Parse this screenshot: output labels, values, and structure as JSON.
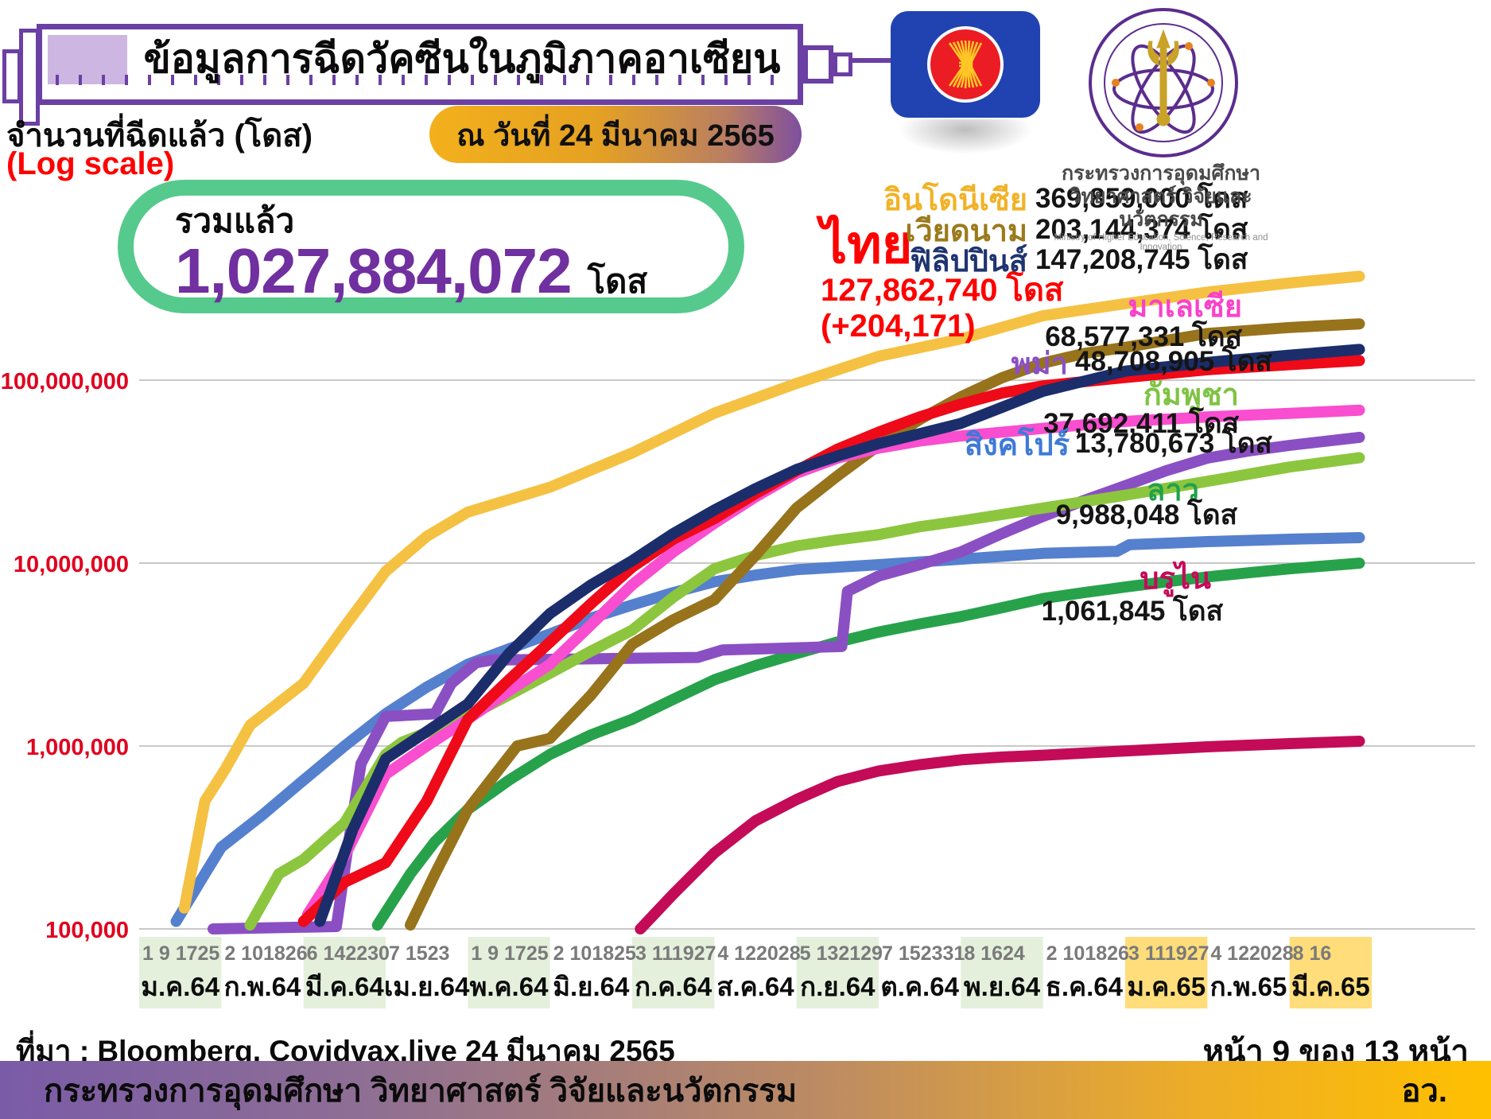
{
  "header": {
    "title": "ข้อมูลการฉีดวัคซีนในภูมิภาคอาเซียน",
    "date_badge": "ณ วันที่ 24 มีนาคม 2565",
    "axis_title_line1": "จำนวนที่ฉีดแล้ว (โดส)",
    "axis_title_line2": "(Log scale)"
  },
  "total_badge": {
    "label": "รวมแล้ว",
    "value": "1,027,884,072",
    "unit": "โดส"
  },
  "thailand_callout": {
    "name": "ไทย",
    "value": "127,862,740 โดส",
    "delta": "(+204,171)"
  },
  "ministry": {
    "line1": "กระทรวงการอุดมศึกษา",
    "line2": "วิทยาศาสตร์ วิจัยและนวัตกรรม",
    "line3": "Ministry of Higher Education, Science, Research and Innovation"
  },
  "source_line": "ที่มา : Bloomberg, Covidvax.live 24 มีนาคม 2565",
  "page_indicator": "หน้า 9 ของ 13 หน้า",
  "footer": {
    "text": "กระทรวงการอุดมศึกษา วิทยาศาสตร์ วิจัยและนวัตกรรม",
    "abbr": "อว."
  },
  "icons": {
    "asean_flag": "asean-flag",
    "ministry_seal": "ministry-of-higher-education-seal",
    "syringe_banner": "syringe-banner"
  },
  "colors": {
    "banner_purple": "#6B3FA3",
    "banner_fill": "#CDB6E2",
    "badge_green": "#55CA8C",
    "total_purple": "#7030A0",
    "axis_red": "#E1001E",
    "thai_red": "#FF0000",
    "asean_blue": "#2143B1",
    "asean_red": "#EC1C24",
    "asean_yellow": "#FFC726"
  },
  "chart_data": {
    "type": "line",
    "y_scale": "log",
    "ylabel": "จำนวนที่ฉีดแล้ว (โดส)",
    "grid": true,
    "ylim": [
      100000,
      500000000
    ],
    "y_ticks": [
      {
        "value": 100000000,
        "label": "100,000,000"
      },
      {
        "value": 10000000,
        "label": "10,000,000"
      },
      {
        "value": 1000000,
        "label": "1,000,000"
      },
      {
        "value": 100000,
        "label": "100,000"
      }
    ],
    "x_months": [
      {
        "days": "1  9 1725",
        "month": "ม.ค.64",
        "bg": "green"
      },
      {
        "days": "2 101826",
        "month": "ก.พ.64",
        "bg": "white"
      },
      {
        "days": "6 142230",
        "month": "มี.ค.64",
        "bg": "green"
      },
      {
        "days": "7 1523",
        "month": "เม.ย.64",
        "bg": "white"
      },
      {
        "days": "1  9 1725",
        "month": "พ.ค.64",
        "bg": "green"
      },
      {
        "days": "2 101825",
        "month": "มิ.ย.64",
        "bg": "white"
      },
      {
        "days": "3 111927",
        "month": "ก.ค.64",
        "bg": "green"
      },
      {
        "days": "4 122028",
        "month": "ส.ค.64",
        "bg": "white"
      },
      {
        "days": "5 132129",
        "month": "ก.ย.64",
        "bg": "green"
      },
      {
        "days": "7 152331",
        "month": "ต.ค.64",
        "bg": "white"
      },
      {
        "days": "8 1624",
        "month": "พ.ย.64",
        "bg": "green"
      },
      {
        "days": "2 101826",
        "month": "ธ.ค.64",
        "bg": "white"
      },
      {
        "days": "3 111927",
        "month": "ม.ค.65",
        "bg": "yellow"
      },
      {
        "days": "4 122028",
        "month": "ก.พ.65",
        "bg": "white"
      },
      {
        "days": "8 16",
        "month": "มี.ค.65",
        "bg": "yellow"
      }
    ],
    "draw_order": [
      "brunei",
      "laos",
      "singapore",
      "myanmar",
      "cambodia",
      "vietnam",
      "malaysia",
      "thailand",
      "philippines",
      "indonesia"
    ],
    "series": [
      {
        "key": "indonesia",
        "label_th": "อินโดนีเซีย",
        "value_label": "369,859,000 โดส",
        "doses": 369859000,
        "color": "#F5C142",
        "label_color": "#F2B226",
        "points": [
          [
            0.55,
            130000
          ],
          [
            0.8,
            500000
          ],
          [
            1.05,
            750000
          ],
          [
            1.35,
            1300000
          ],
          [
            2,
            2200000
          ],
          [
            2.5,
            4500000
          ],
          [
            3,
            9000000
          ],
          [
            3.5,
            14000000
          ],
          [
            4,
            19000000
          ],
          [
            5,
            26000000
          ],
          [
            6,
            40000000
          ],
          [
            7,
            66000000
          ],
          [
            8,
            96000000
          ],
          [
            9,
            135000000
          ],
          [
            10,
            168000000
          ],
          [
            11,
            225000000
          ],
          [
            12,
            262000000
          ],
          [
            13,
            303000000
          ],
          [
            14,
            340000000
          ],
          [
            14.85,
            369859000
          ]
        ]
      },
      {
        "key": "vietnam",
        "label_th": "เวียดนาม",
        "value_label": "203,144,374 โดส",
        "doses": 203144374,
        "color": "#97731C",
        "label_color": "#9A7A1C",
        "points": [
          [
            3.3,
            105000
          ],
          [
            3.6,
            200000
          ],
          [
            4,
            450000
          ],
          [
            4.6,
            1000000
          ],
          [
            5,
            1100000
          ],
          [
            5.5,
            1900000
          ],
          [
            6,
            3600000
          ],
          [
            6.5,
            4900000
          ],
          [
            7,
            6300000
          ],
          [
            7.5,
            11000000
          ],
          [
            8,
            20000000
          ],
          [
            8.5,
            30000000
          ],
          [
            9,
            44000000
          ],
          [
            9.5,
            61000000
          ],
          [
            10,
            81000000
          ],
          [
            10.5,
            103000000
          ],
          [
            11,
            124000000
          ],
          [
            11.5,
            140000000
          ],
          [
            12,
            151000000
          ],
          [
            13,
            180000000
          ],
          [
            14,
            194000000
          ],
          [
            14.85,
            203144374
          ]
        ]
      },
      {
        "key": "philippines",
        "label_th": "ฟิลิปปินส์",
        "value_label": "147,208,745 โดส",
        "doses": 147208745,
        "color": "#1B2E6B",
        "label_color": "#1F3470",
        "points": [
          [
            2.2,
            110000
          ],
          [
            2.6,
            350000
          ],
          [
            3,
            850000
          ],
          [
            3.5,
            1200000
          ],
          [
            4,
            1700000
          ],
          [
            4.5,
            3200000
          ],
          [
            5,
            5300000
          ],
          [
            5.5,
            7600000
          ],
          [
            6,
            10300000
          ],
          [
            6.5,
            14500000
          ],
          [
            7,
            19500000
          ],
          [
            7.5,
            25500000
          ],
          [
            8,
            32500000
          ],
          [
            8.5,
            38500000
          ],
          [
            9,
            45000000
          ],
          [
            9.5,
            51000000
          ],
          [
            10,
            58000000
          ],
          [
            10.5,
            71000000
          ],
          [
            11,
            87000000
          ],
          [
            12,
            112000000
          ],
          [
            13,
            125000000
          ],
          [
            14,
            137000000
          ],
          [
            14.85,
            147208745
          ]
        ]
      },
      {
        "key": "thailand",
        "label_th": "ไทย",
        "value_label": "127,862,740 โดส",
        "doses": 127862740,
        "color": "#EE0A18",
        "label_color": "#FF0000",
        "points": [
          [
            2.0,
            110000
          ],
          [
            2.5,
            180000
          ],
          [
            3,
            230000
          ],
          [
            3.5,
            500000
          ],
          [
            4,
            1400000
          ],
          [
            4.5,
            2300000
          ],
          [
            5,
            3700000
          ],
          [
            5.5,
            6000000
          ],
          [
            6,
            9500000
          ],
          [
            6.5,
            13500000
          ],
          [
            7,
            17500000
          ],
          [
            7.5,
            24000000
          ],
          [
            8,
            32000000
          ],
          [
            8.5,
            42000000
          ],
          [
            9,
            52000000
          ],
          [
            9.5,
            63000000
          ],
          [
            10,
            74000000
          ],
          [
            10.5,
            85000000
          ],
          [
            11,
            93000000
          ],
          [
            12,
            103500000
          ],
          [
            13,
            114000000
          ],
          [
            14,
            121500000
          ],
          [
            14.85,
            127862740
          ]
        ]
      },
      {
        "key": "malaysia",
        "label_th": "มาเลเซีย",
        "value_label": "68,577,331 โดส",
        "doses": 68577331,
        "color": "#F84ECF",
        "label_color": "#FA41C9",
        "points": [
          [
            2.05,
            120000
          ],
          [
            2.5,
            250000
          ],
          [
            3,
            700000
          ],
          [
            3.5,
            1000000
          ],
          [
            4,
            1400000
          ],
          [
            4.5,
            2000000
          ],
          [
            5,
            2800000
          ],
          [
            5.5,
            4600000
          ],
          [
            6,
            7600000
          ],
          [
            6.5,
            11500000
          ],
          [
            7,
            16500000
          ],
          [
            7.5,
            23000000
          ],
          [
            8,
            31000000
          ],
          [
            8.5,
            37500000
          ],
          [
            9,
            42500000
          ],
          [
            9.5,
            46500000
          ],
          [
            10,
            49500000
          ],
          [
            11,
            54500000
          ],
          [
            12,
            59500000
          ],
          [
            13,
            63000000
          ],
          [
            14,
            65800000
          ],
          [
            14.85,
            68577331
          ]
        ]
      },
      {
        "key": "myanmar",
        "label_th": "พม่า",
        "value_label": "48,708,905 โดส",
        "doses": 48708905,
        "color": "#8B4FC4",
        "label_color": "#8B4FC4",
        "points": [
          [
            0.9,
            100000
          ],
          [
            2.4,
            103000
          ],
          [
            2.55,
            300000
          ],
          [
            2.7,
            800000
          ],
          [
            3,
            1450000
          ],
          [
            3.6,
            1500000
          ],
          [
            3.8,
            2200000
          ],
          [
            4.1,
            2850000
          ],
          [
            4.3,
            2950000
          ],
          [
            6.8,
            3050000
          ],
          [
            7.1,
            3350000
          ],
          [
            8.55,
            3500000
          ],
          [
            8.62,
            7000000
          ],
          [
            9,
            8500000
          ],
          [
            9.5,
            9800000
          ],
          [
            10,
            11500000
          ],
          [
            10.5,
            14500000
          ],
          [
            11,
            18000000
          ],
          [
            11.5,
            22000000
          ],
          [
            12,
            26500000
          ],
          [
            12.5,
            32000000
          ],
          [
            13,
            37500000
          ],
          [
            13.5,
            41000000
          ],
          [
            14,
            44000000
          ],
          [
            14.85,
            48708905
          ]
        ]
      },
      {
        "key": "cambodia",
        "label_th": "กัมพูชา",
        "value_label": "37,692,411 โดส",
        "doses": 37692411,
        "color": "#8CC63E",
        "label_color": "#7FC343",
        "points": [
          [
            1.35,
            105000
          ],
          [
            1.7,
            200000
          ],
          [
            2,
            240000
          ],
          [
            2.5,
            380000
          ],
          [
            3,
            900000
          ],
          [
            3.2,
            1050000
          ],
          [
            4,
            1450000
          ],
          [
            4.5,
            1900000
          ],
          [
            5,
            2500000
          ],
          [
            5.5,
            3300000
          ],
          [
            6,
            4300000
          ],
          [
            6.5,
            6500000
          ],
          [
            7,
            9300000
          ],
          [
            7.5,
            11000000
          ],
          [
            8,
            12400000
          ],
          [
            8.5,
            13400000
          ],
          [
            9,
            14300000
          ],
          [
            9.5,
            15800000
          ],
          [
            10,
            17000000
          ],
          [
            11,
            20000000
          ],
          [
            12,
            23500000
          ],
          [
            13,
            28000000
          ],
          [
            14,
            33500000
          ],
          [
            14.85,
            37692411
          ]
        ]
      },
      {
        "key": "singapore",
        "label_th": "สิงคโปร์",
        "value_label": "13,780,673 โดส",
        "doses": 13780673,
        "color": "#5580CE",
        "label_color": "#3E7AD6",
        "points": [
          [
            0.45,
            110000
          ],
          [
            0.8,
            200000
          ],
          [
            1,
            280000
          ],
          [
            1.5,
            420000
          ],
          [
            2,
            650000
          ],
          [
            2.5,
            1000000
          ],
          [
            3,
            1500000
          ],
          [
            3.5,
            2100000
          ],
          [
            4,
            2800000
          ],
          [
            4.5,
            3400000
          ],
          [
            5,
            4100000
          ],
          [
            5.5,
            5000000
          ],
          [
            6,
            5900000
          ],
          [
            6.5,
            6900000
          ],
          [
            7,
            7900000
          ],
          [
            7.5,
            8600000
          ],
          [
            8,
            9200000
          ],
          [
            9,
            9800000
          ],
          [
            10,
            10500000
          ],
          [
            11,
            11300000
          ],
          [
            11.9,
            11600000
          ],
          [
            12.05,
            12600000
          ],
          [
            13,
            13100000
          ],
          [
            14,
            13500000
          ],
          [
            14.85,
            13780673
          ]
        ]
      },
      {
        "key": "laos",
        "label_th": "ลาว",
        "value_label": "9,988,048 โดส",
        "doses": 9988048,
        "color": "#27A24B",
        "label_color": "#22A14B",
        "points": [
          [
            2.9,
            105000
          ],
          [
            3.3,
            200000
          ],
          [
            3.6,
            300000
          ],
          [
            4,
            450000
          ],
          [
            4.5,
            650000
          ],
          [
            5,
            900000
          ],
          [
            5.5,
            1150000
          ],
          [
            6,
            1400000
          ],
          [
            6.5,
            1800000
          ],
          [
            7,
            2300000
          ],
          [
            7.5,
            2750000
          ],
          [
            8,
            3200000
          ],
          [
            8.5,
            3700000
          ],
          [
            9,
            4200000
          ],
          [
            9.5,
            4650000
          ],
          [
            10,
            5100000
          ],
          [
            10.5,
            5700000
          ],
          [
            11,
            6400000
          ],
          [
            11.5,
            6900000
          ],
          [
            12,
            7400000
          ],
          [
            12.5,
            7900000
          ],
          [
            13,
            8400000
          ],
          [
            13.5,
            8850000
          ],
          [
            14,
            9300000
          ],
          [
            14.85,
            9988048
          ]
        ]
      },
      {
        "key": "brunei",
        "label_th": "บรูไน",
        "value_label": "1,061,845 โดส",
        "doses": 1061845,
        "color": "#C30B58",
        "label_color": "#C40A58",
        "points": [
          [
            6.1,
            100000
          ],
          [
            6.5,
            155000
          ],
          [
            7,
            260000
          ],
          [
            7.5,
            390000
          ],
          [
            8,
            510000
          ],
          [
            8.5,
            640000
          ],
          [
            9,
            730000
          ],
          [
            9.5,
            790000
          ],
          [
            10,
            840000
          ],
          [
            10.5,
            870000
          ],
          [
            11,
            890000
          ],
          [
            11.5,
            915000
          ],
          [
            12,
            940000
          ],
          [
            12.5,
            965000
          ],
          [
            13,
            990000
          ],
          [
            13.5,
            1010000
          ],
          [
            14,
            1030000
          ],
          [
            14.85,
            1061845
          ]
        ]
      }
    ]
  }
}
